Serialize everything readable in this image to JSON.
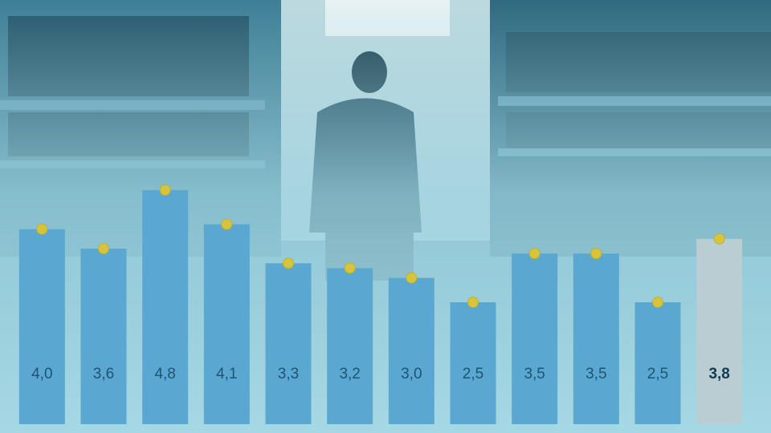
{
  "chart_data": {
    "type": "bar",
    "categories": [
      null,
      null,
      null,
      null,
      null,
      null,
      null,
      null,
      null,
      null,
      null,
      null
    ],
    "values": [
      4.0,
      3.6,
      4.8,
      4.1,
      3.3,
      3.2,
      3.0,
      2.5,
      3.5,
      3.5,
      2.5,
      3.8
    ],
    "value_labels": [
      "4,0",
      "3,6",
      "4,8",
      "4,1",
      "3,3",
      "3,2",
      "3,0",
      "2,5",
      "3,5",
      "3,5",
      "2,5",
      "3,8"
    ],
    "colors": [
      "#5aa7d1",
      "#5aa7d1",
      "#5aa7d1",
      "#5aa7d1",
      "#5aa7d1",
      "#5aa7d1",
      "#5aa7d1",
      "#5aa7d1",
      "#5aa7d1",
      "#5aa7d1",
      "#5aa7d1",
      "#b9cdd2"
    ],
    "marker_color": "#d6c53c",
    "ylim": [
      0,
      8.7
    ]
  }
}
